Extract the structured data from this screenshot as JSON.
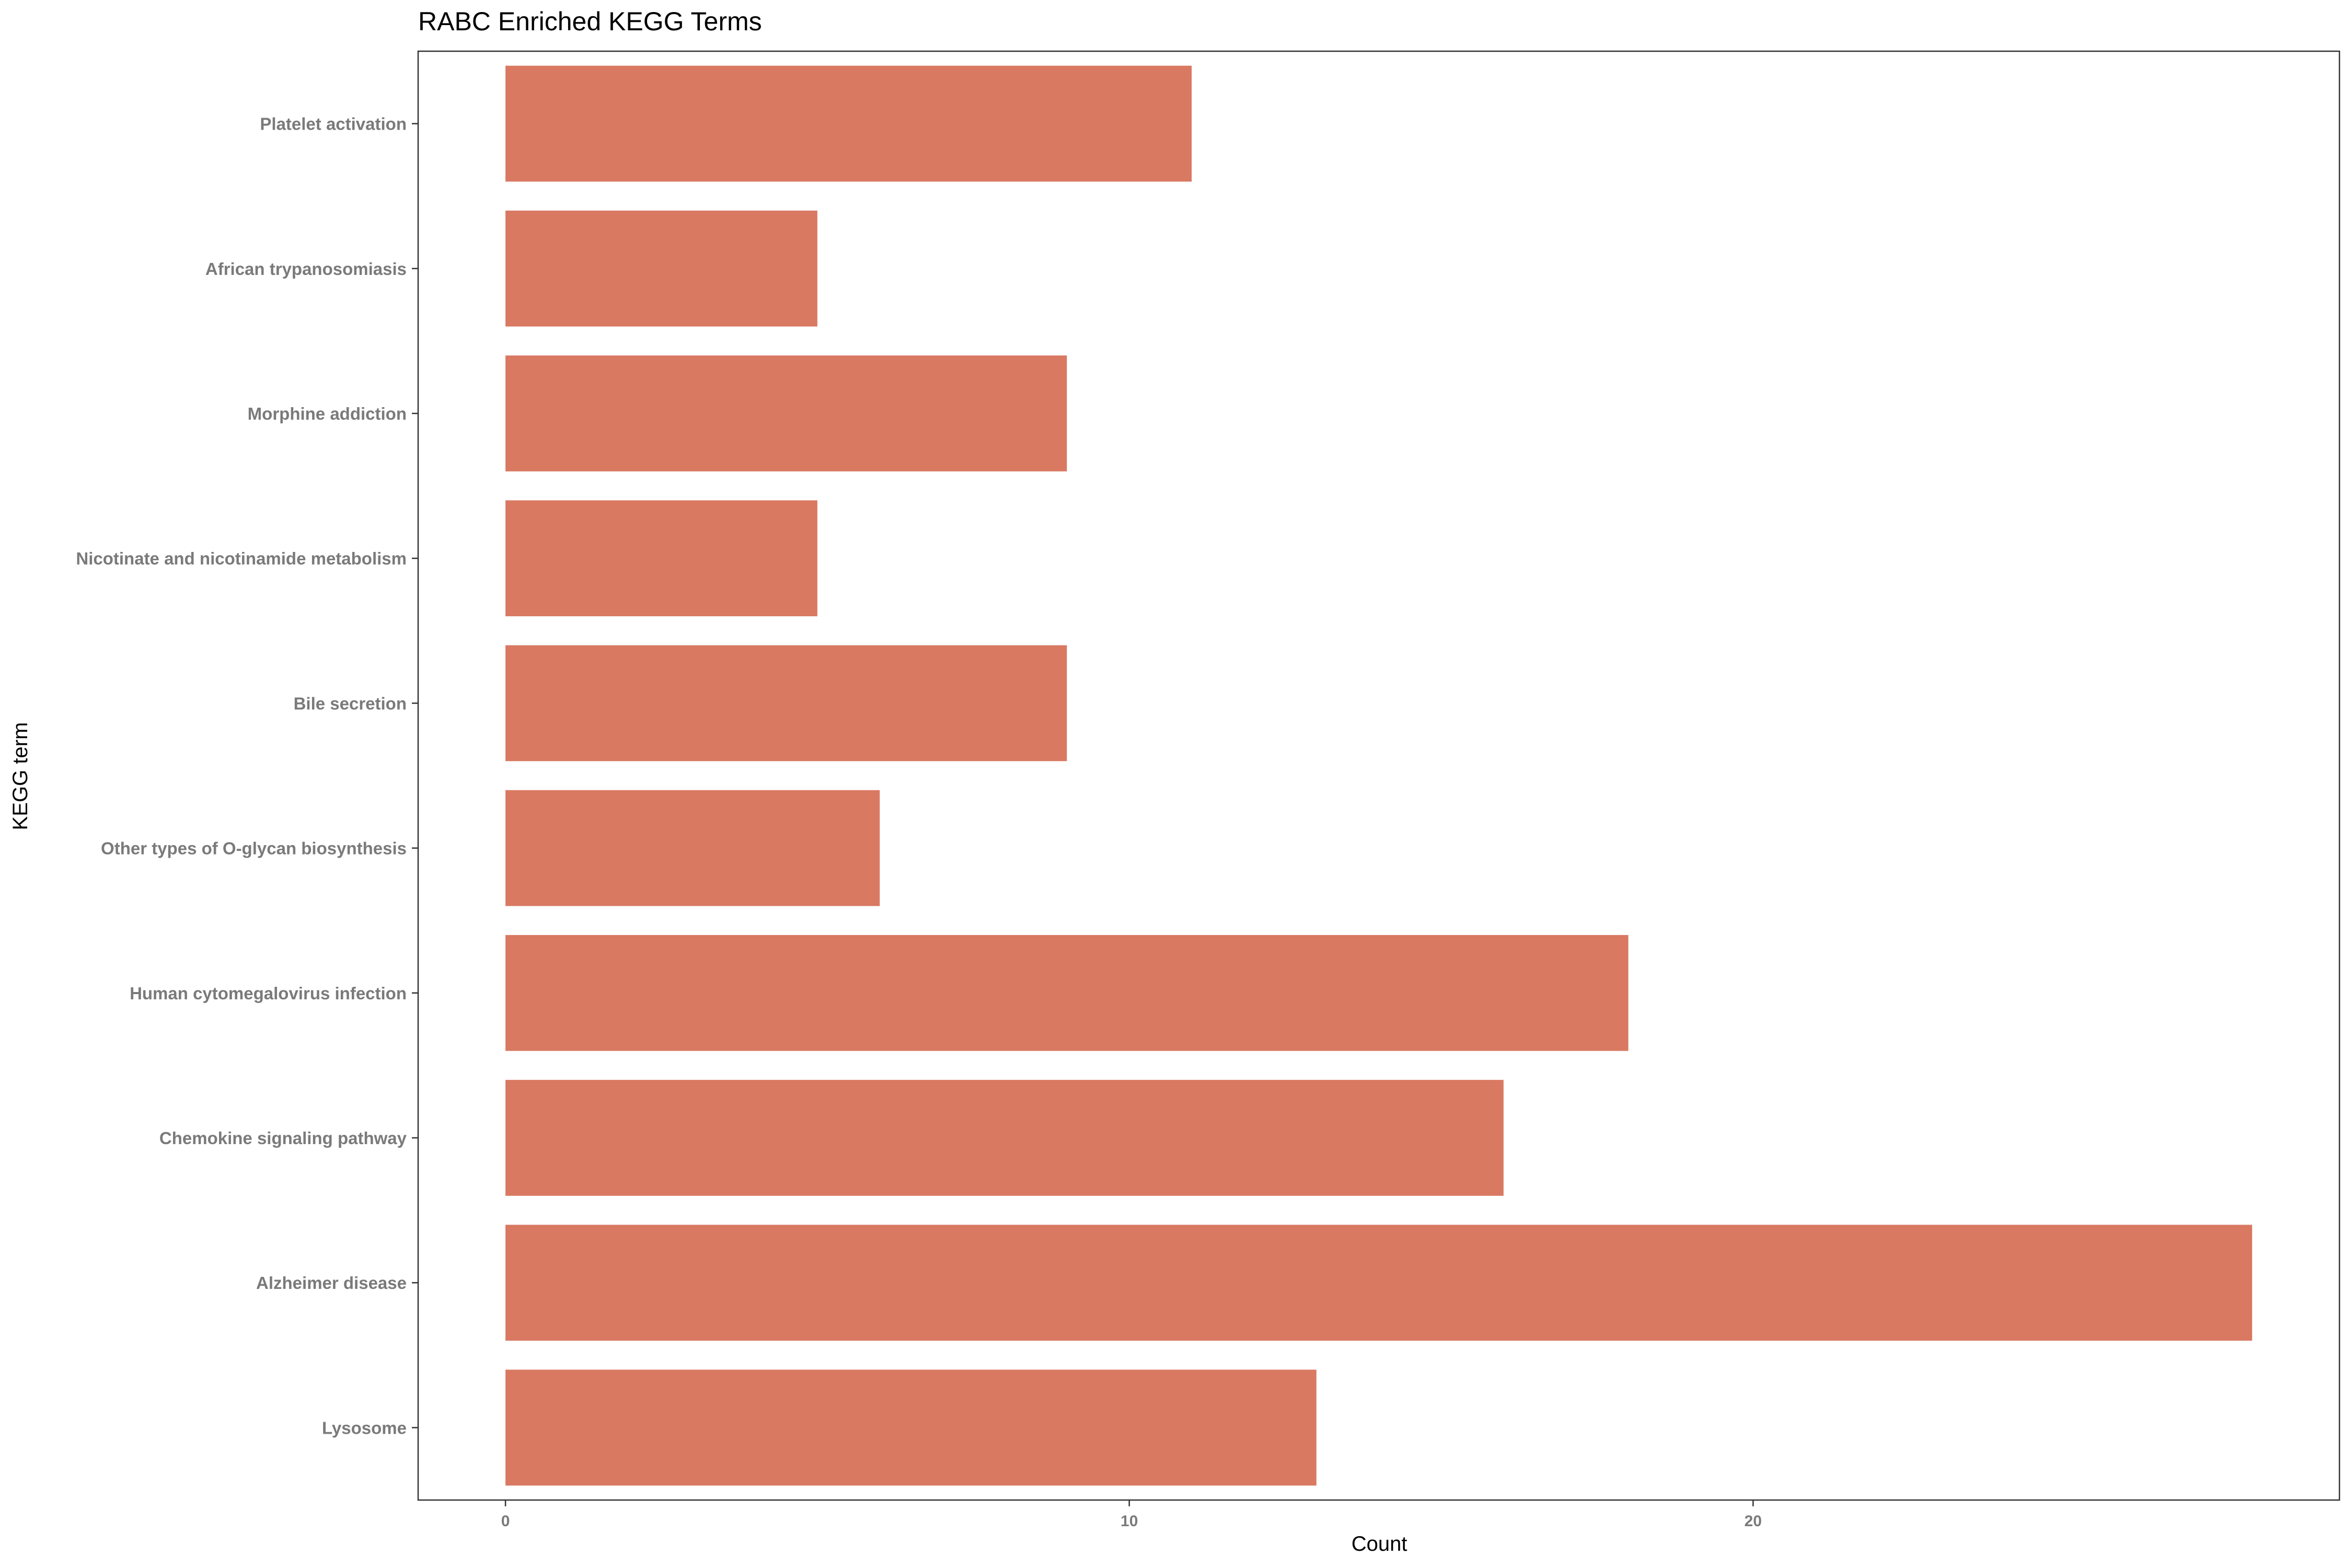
{
  "chart_data": {
    "type": "bar",
    "orientation": "horizontal",
    "title": "RABC Enriched KEGG Terms",
    "xlabel": "Count",
    "ylabel": "KEGG term",
    "categories": [
      "Platelet activation",
      "African trypanosomiasis",
      "Morphine addiction",
      "Nicotinate and nicotinamide metabolism",
      "Bile secretion",
      "Other types of O-glycan biosynthesis",
      "Human cytomegalovirus infection",
      "Chemokine signaling pathway",
      "Alzheimer disease",
      "Lysosome"
    ],
    "values": [
      11,
      5,
      9,
      5,
      9,
      6,
      18,
      16,
      28,
      13
    ],
    "xlim": [
      -1.4,
      29.4
    ],
    "xticks": [
      0,
      10,
      20
    ],
    "grid": false,
    "legend": "none",
    "bar_color": "#d97962"
  }
}
